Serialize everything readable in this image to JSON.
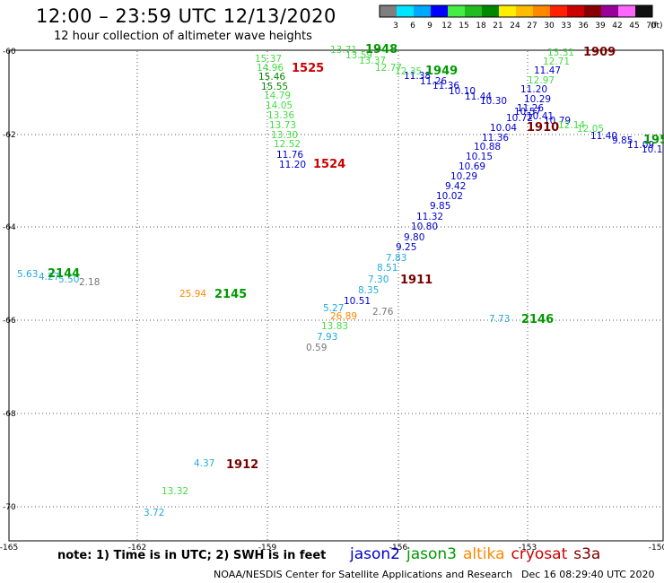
{
  "header": {
    "title": "12:00 – 23:59 UTC 12/13/2020",
    "subtitle": "12 hour collection of altimeter wave heights"
  },
  "color_scale": {
    "labels": [
      "3",
      "6",
      "9",
      "12",
      "15",
      "18",
      "21",
      "24",
      "27",
      "30",
      "33",
      "36",
      "39",
      "42",
      "45",
      "70"
    ],
    "colors": [
      "#7f7f7f",
      "#00e5ff",
      "#00a8ff",
      "#0000ff",
      "#44ee44",
      "#22bb22",
      "#008800",
      "#ffee00",
      "#ffbb00",
      "#ff8800",
      "#ff2200",
      "#cc0000",
      "#880000",
      "#990099",
      "#ff66ff",
      "#111111"
    ],
    "unit": "(ft)"
  },
  "axes": {
    "x_ticks": [
      "-165",
      "-162",
      "-159",
      "-156",
      "-153",
      "-150"
    ],
    "y_ticks": [
      "-60",
      "-62",
      "-64",
      "-66",
      "-68",
      "-70"
    ]
  },
  "colors": {
    "jason2": "#0000cc",
    "jason3": "#009900",
    "altika": "#ff8800",
    "cryosat": "#cc0000",
    "s3a": "#7a0000",
    "light_green": "#44dd44",
    "cyan": "#22aadd",
    "gray": "#777777",
    "dark_green": "#008800"
  },
  "wave_labels": [
    {
      "t": "15.37",
      "c": "light_green"
    },
    {
      "t": "14.96",
      "c": "light_green"
    },
    {
      "t": "15.46",
      "c": "dark_green"
    },
    {
      "t": "15.55",
      "c": "dark_green"
    },
    {
      "t": "14.79",
      "c": "light_green"
    },
    {
      "t": "14.05",
      "c": "light_green"
    },
    {
      "t": "13.36",
      "c": "light_green"
    },
    {
      "t": "13.73",
      "c": "light_green"
    },
    {
      "t": "13.30",
      "c": "light_green"
    },
    {
      "t": "12.52",
      "c": "light_green"
    },
    {
      "t": "11.76",
      "c": "jason2"
    },
    {
      "t": "11.20",
      "c": "jason2"
    },
    {
      "t": "13.71",
      "c": "light_green"
    },
    {
      "t": "13.59",
      "c": "light_green"
    },
    {
      "t": "13.37",
      "c": "light_green"
    },
    {
      "t": "12.77",
      "c": "light_green"
    },
    {
      "t": "12.35",
      "c": "light_green"
    },
    {
      "t": "11.38",
      "c": "jason2"
    },
    {
      "t": "11.26",
      "c": "jason2"
    },
    {
      "t": "11.36",
      "c": "jason2"
    },
    {
      "t": "10.10",
      "c": "jason2"
    },
    {
      "t": "11.44",
      "c": "jason2"
    },
    {
      "t": "10.30",
      "c": "jason2"
    },
    {
      "t": "13.31",
      "c": "light_green"
    },
    {
      "t": "12.71",
      "c": "light_green"
    },
    {
      "t": "11.47",
      "c": "jason2"
    },
    {
      "t": "12.97",
      "c": "light_green"
    },
    {
      "t": "11.20",
      "c": "jason2"
    },
    {
      "t": "10.29",
      "c": "jason2"
    },
    {
      "t": "11.26",
      "c": "jason2"
    },
    {
      "t": "10.57",
      "c": "jason2"
    },
    {
      "t": "10.72",
      "c": "jason2"
    },
    {
      "t": "10.41",
      "c": "jason2"
    },
    {
      "t": "10.79",
      "c": "jason2"
    },
    {
      "t": "12.14",
      "c": "light_green"
    },
    {
      "t": "12.05",
      "c": "light_green"
    },
    {
      "t": "10.04",
      "c": "jason2"
    },
    {
      "t": "11.40",
      "c": "jason2"
    },
    {
      "t": "9.85",
      "c": "jason2"
    },
    {
      "t": "11.09",
      "c": "jason2"
    },
    {
      "t": "10.1",
      "c": "jason2"
    },
    {
      "t": "11.36",
      "c": "jason2"
    },
    {
      "t": "10.88",
      "c": "jason2"
    },
    {
      "t": "10.15",
      "c": "jason2"
    },
    {
      "t": "10.69",
      "c": "jason2"
    },
    {
      "t": "10.29",
      "c": "jason2"
    },
    {
      "t": "9.42",
      "c": "jason2"
    },
    {
      "t": "10.02",
      "c": "jason2"
    },
    {
      "t": "9.85",
      "c": "jason2"
    },
    {
      "t": "11.32",
      "c": "jason2"
    },
    {
      "t": "10.80",
      "c": "jason2"
    },
    {
      "t": "9.80",
      "c": "jason2"
    },
    {
      "t": "9.25",
      "c": "jason2"
    },
    {
      "t": "7.83",
      "c": "cyan"
    },
    {
      "t": "8.51",
      "c": "cyan"
    },
    {
      "t": "7.30",
      "c": "cyan"
    },
    {
      "t": "8.35",
      "c": "cyan"
    },
    {
      "t": "10.51",
      "c": "jason2"
    },
    {
      "t": "5.27",
      "c": "cyan"
    },
    {
      "t": "26.89",
      "c": "altika"
    },
    {
      "t": "2.76",
      "c": "gray"
    },
    {
      "t": "13.83",
      "c": "light_green"
    },
    {
      "t": "7.93",
      "c": "cyan"
    },
    {
      "t": "0.59",
      "c": "gray"
    },
    {
      "t": "5.63",
      "c": "cyan"
    },
    {
      "t": "4.27",
      "c": "cyan"
    },
    {
      "t": "5.50",
      "c": "cyan"
    },
    {
      "t": "2.18",
      "c": "gray"
    },
    {
      "t": "25.94",
      "c": "altika"
    },
    {
      "t": "7.73",
      "c": "cyan"
    },
    {
      "t": "4.37",
      "c": "cyan"
    },
    {
      "t": "13.32",
      "c": "light_green"
    },
    {
      "t": "3.72",
      "c": "cyan"
    }
  ],
  "time_labels": [
    {
      "t": "1525",
      "c": "cryosat"
    },
    {
      "t": "1524",
      "c": "cryosat"
    },
    {
      "t": "1948",
      "c": "jason3"
    },
    {
      "t": "1949",
      "c": "jason3"
    },
    {
      "t": "1909",
      "c": "s3a"
    },
    {
      "t": "1910",
      "c": "s3a"
    },
    {
      "t": "195",
      "c": "jason3"
    },
    {
      "t": "1911",
      "c": "s3a"
    },
    {
      "t": "2144",
      "c": "jason3"
    },
    {
      "t": "2145",
      "c": "jason3"
    },
    {
      "t": "2146",
      "c": "jason3"
    },
    {
      "t": "1912",
      "c": "s3a"
    }
  ],
  "note": "note:  1) Time is in UTC; 2) SWH is in feet",
  "satellites": [
    {
      "name": "jason2",
      "c": "jason2"
    },
    {
      "name": "jason3",
      "c": "jason3"
    },
    {
      "name": "altika",
      "c": "altika"
    },
    {
      "name": "cryosat",
      "c": "cryosat"
    },
    {
      "name": "s3a",
      "c": "s3a"
    }
  ],
  "footer": {
    "credit": "NOAA/NESDIS Center for Satellite Applications and Research",
    "timestamp": "Dec 16 08:29:40 UTC 2020"
  }
}
